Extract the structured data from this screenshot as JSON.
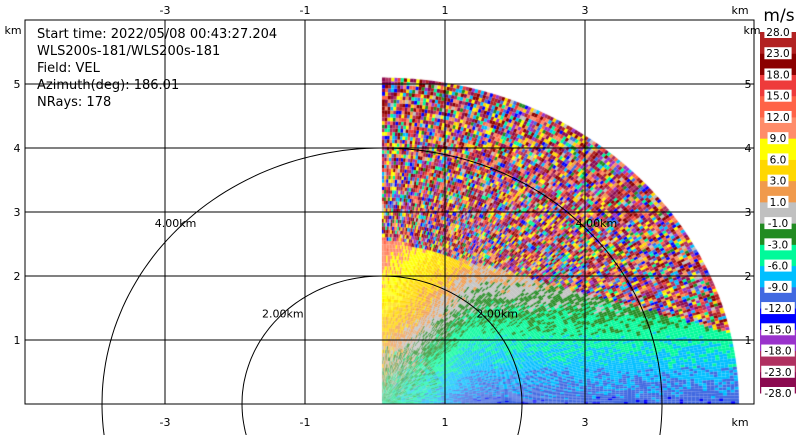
{
  "chart_data": {
    "type": "heatmap",
    "subtype": "radar-ppi",
    "info": {
      "start_time": "Start time: 2022/05/08 00:43:27.204",
      "instrument": "WLS200s-181/WLS200s-181",
      "field": "Field: VEL",
      "azimuth": "Azimuth(deg): 186.01",
      "nrays": "NRays: 178"
    },
    "x_unit": "km",
    "y_unit": "km",
    "xlim": [
      -5,
      5.4
    ],
    "ylim": [
      0,
      6
    ],
    "x_ticks": [
      "-3",
      "-1",
      "1",
      "3"
    ],
    "y_ticks": [
      "5",
      "4",
      "3",
      "2",
      "1"
    ],
    "grid": true,
    "range_rings_km": [
      2,
      4
    ],
    "range_ring_labels": [
      "2.00km",
      "4.00km"
    ],
    "sector_deg": [
      0,
      90
    ],
    "max_range_km": 5.1,
    "colorbar": {
      "unit": "m/s",
      "bounds": [
        "-28.0",
        "-23.0",
        "-18.0",
        "-15.0",
        "-12.0",
        "-9.0",
        "-6.0",
        "-3.0",
        "-1.0",
        "1.0",
        "3.0",
        "6.0",
        "9.0",
        "12.0",
        "15.0",
        "18.0",
        "23.0",
        "28.0"
      ],
      "colors": [
        "#8b0a50",
        "#b03060",
        "#9932cc",
        "#0000ff",
        "#4169e1",
        "#00bfff",
        "#00fa9a",
        "#228b22",
        "#c0c0c0",
        "#f09a4c",
        "#ffd700",
        "#ffff00",
        "#ff8c69",
        "#ff6347",
        "#ee3b3b",
        "#8b0000",
        "#b22222"
      ]
    }
  }
}
